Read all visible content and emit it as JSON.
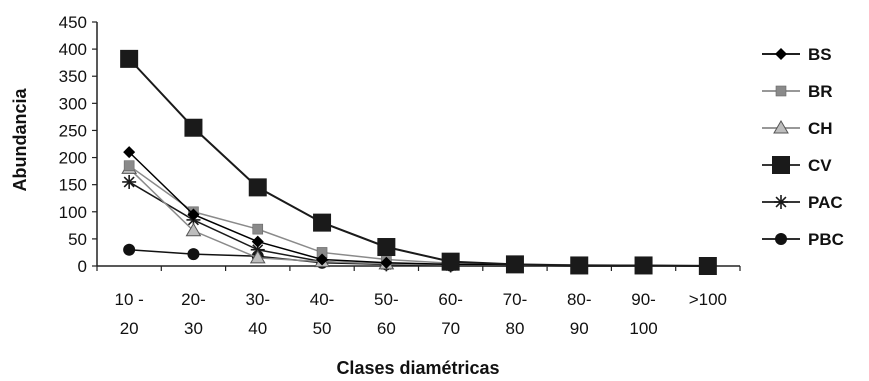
{
  "chart_data": {
    "type": "line",
    "title": "",
    "xlabel": "Clases diamétricas",
    "ylabel": "Abundancia",
    "ylim": [
      0,
      450
    ],
    "yticks": [
      0,
      50,
      100,
      150,
      200,
      250,
      300,
      350,
      400,
      450
    ],
    "categories": [
      [
        "10 -",
        "20"
      ],
      [
        "20-",
        "30"
      ],
      [
        "30-",
        "40"
      ],
      [
        "40-",
        "50"
      ],
      [
        "50-",
        "60"
      ],
      [
        "60-",
        "70"
      ],
      [
        "70-",
        "80"
      ],
      [
        "80-",
        "90"
      ],
      [
        "90-",
        "100"
      ],
      [
        ">100",
        ""
      ]
    ],
    "legend_position": "right",
    "grid": false,
    "series": [
      {
        "name": "BS",
        "marker": "diamond",
        "color": "#000000",
        "values": [
          210,
          95,
          45,
          12,
          6,
          3,
          2,
          1,
          1,
          0
        ]
      },
      {
        "name": "BR",
        "marker": "square-small",
        "color": "#8a8a8a",
        "values": [
          185,
          100,
          68,
          25,
          12,
          5,
          3,
          2,
          1,
          1
        ]
      },
      {
        "name": "CH",
        "marker": "triangle",
        "color": "#8a8a8a",
        "values": [
          180,
          65,
          15,
          8,
          4,
          2,
          1,
          1,
          0,
          0
        ]
      },
      {
        "name": "CV",
        "marker": "square-large",
        "color": "#1a1a1a",
        "values": [
          382,
          255,
          145,
          80,
          35,
          8,
          3,
          1,
          1,
          0
        ]
      },
      {
        "name": "PAC",
        "marker": "star",
        "color": "#1a1a1a",
        "values": [
          155,
          85,
          30,
          8,
          3,
          1,
          1,
          0,
          0,
          0
        ]
      },
      {
        "name": "PBC",
        "marker": "circle",
        "color": "#111111",
        "values": [
          30,
          22,
          18,
          6,
          3,
          1,
          0,
          0,
          0,
          0
        ]
      }
    ]
  }
}
